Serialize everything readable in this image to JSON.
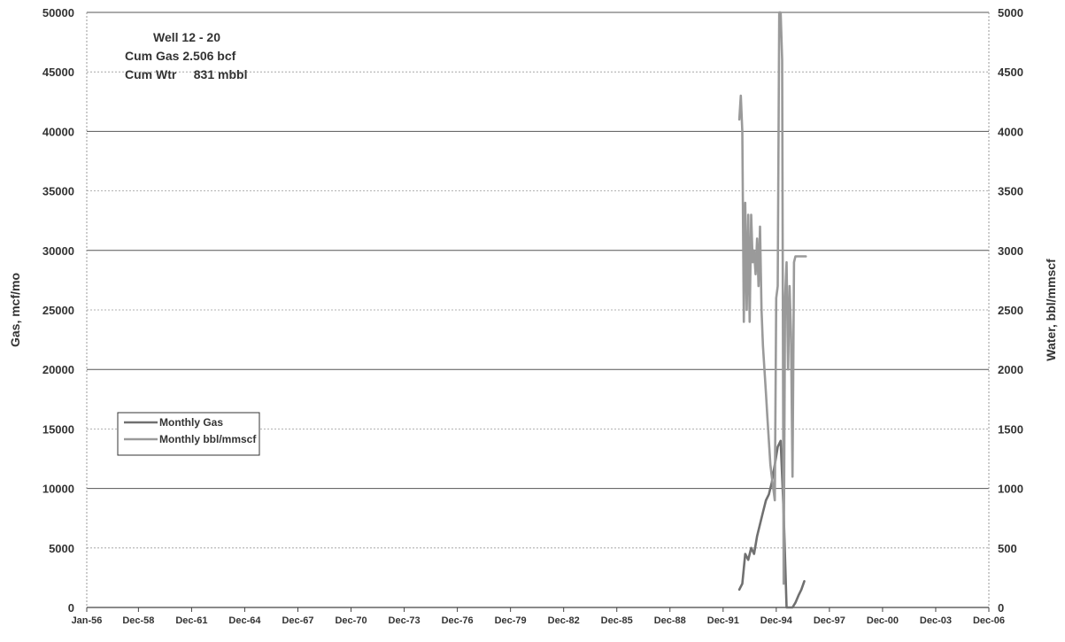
{
  "chart_data": {
    "type": "line",
    "title": "",
    "annotations": [
      "Well 12 - 20",
      "Cum Gas 2.506 bcf",
      "Cum Wtr     831 mbbl"
    ],
    "xlabel": "",
    "ylabel": "Gas, mcf/mo",
    "y2label": "Water, bbl/mmscf",
    "x_ticks": [
      "Jan-56",
      "Dec-58",
      "Dec-61",
      "Dec-64",
      "Dec-67",
      "Dec-70",
      "Dec-73",
      "Dec-76",
      "Dec-79",
      "Dec-82",
      "Dec-85",
      "Dec-88",
      "Dec-91",
      "Dec-94",
      "Dec-97",
      "Dec-00",
      "Dec-03",
      "Dec-06"
    ],
    "xlim": [
      "Jan-56",
      "Dec-06"
    ],
    "ylim": [
      0,
      50000
    ],
    "y_ticks": [
      0,
      5000,
      10000,
      15000,
      20000,
      25000,
      30000,
      35000,
      40000,
      45000,
      50000
    ],
    "y2lim": [
      0,
      5000
    ],
    "y2_ticks": [
      0,
      500,
      1000,
      1500,
      2000,
      2500,
      3000,
      3500,
      4000,
      4500,
      5000
    ],
    "grid": "horizontal",
    "legend_position": "center-left",
    "series": [
      {
        "name": "Monthly Gas",
        "axis": "left",
        "color": "#707070",
        "x": [
          "1992-11",
          "1993-01",
          "1993-03",
          "1993-05",
          "1993-07",
          "1993-09",
          "1993-11",
          "1994-01",
          "1994-03",
          "1994-05",
          "1994-07",
          "1994-09",
          "1994-11",
          "1995-01",
          "1995-03",
          "1995-05",
          "1995-07",
          "1995-09",
          "1995-11",
          "1996-01",
          "1996-03",
          "1996-05",
          "1996-07"
        ],
        "values": [
          1500,
          2000,
          4500,
          4000,
          5000,
          4500,
          6000,
          7000,
          8000,
          9000,
          9500,
          10500,
          12000,
          13500,
          14000,
          8000,
          0,
          0,
          0,
          400,
          1000,
          1500,
          2200
        ]
      },
      {
        "name": "Monthly bbl/mmscf",
        "axis": "right",
        "color": "#9a9a9a",
        "x": [
          "1992-11",
          "1992-12",
          "1993-01",
          "1993-02",
          "1993-03",
          "1993-04",
          "1993-05",
          "1993-06",
          "1993-07",
          "1993-08",
          "1993-09",
          "1993-10",
          "1993-11",
          "1993-12",
          "1994-01",
          "1994-02",
          "1994-03",
          "1994-04",
          "1994-05",
          "1994-06",
          "1994-07",
          "1994-08",
          "1994-09",
          "1994-10",
          "1994-11",
          "1994-12",
          "1995-01",
          "1995-02",
          "1995-03",
          "1995-04",
          "1995-05",
          "1995-06",
          "1995-07",
          "1995-08",
          "1995-09",
          "1995-10",
          "1995-11",
          "1995-12",
          "1996-01",
          "1996-02",
          "1996-03",
          "1996-04",
          "1996-05",
          "1996-06",
          "1996-07",
          "1996-08"
        ],
        "values": [
          4100,
          4300,
          4000,
          2400,
          3400,
          2500,
          3300,
          2400,
          3300,
          2900,
          3000,
          2800,
          3100,
          2700,
          3200,
          2500,
          2200,
          2000,
          1800,
          1600,
          1400,
          1200,
          1100,
          1000,
          900,
          2600,
          2700,
          5000,
          5000,
          4600,
          200,
          2600,
          2900,
          2000,
          2700,
          2300,
          1100,
          2900,
          2950,
          2950,
          2950,
          2950,
          2950,
          2950,
          2950,
          2950
        ]
      }
    ]
  }
}
